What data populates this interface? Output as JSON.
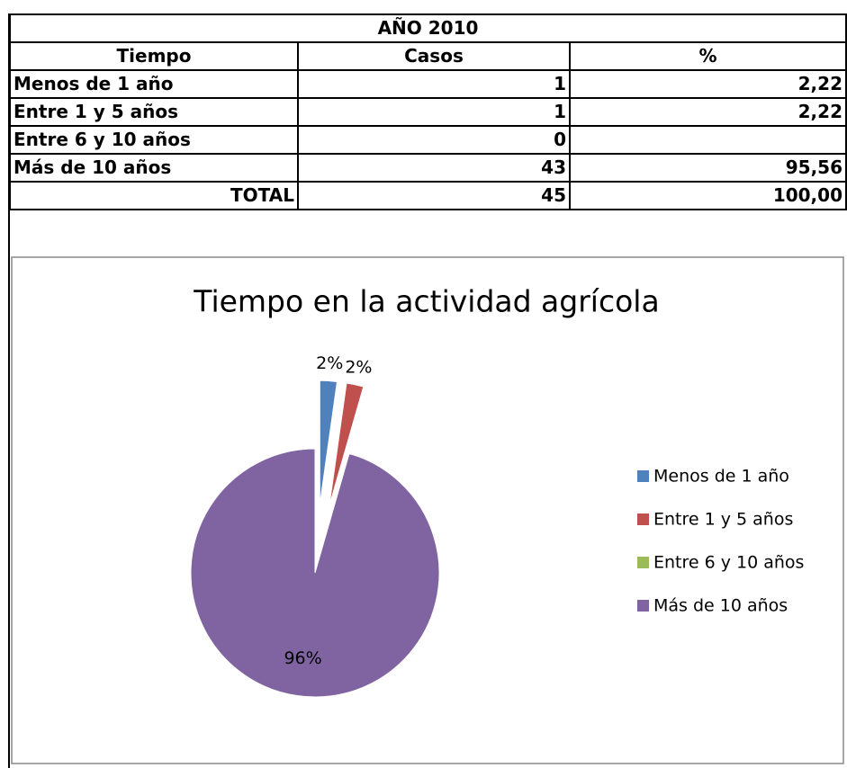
{
  "table": {
    "title": "AÑO 2010",
    "header": [
      "Tiempo",
      "Casos",
      "%"
    ],
    "rows": [
      [
        "Menos de 1 año",
        1,
        "2,22"
      ],
      [
        "Entre 1 y 5 años",
        1,
        "2,22"
      ],
      [
        "Entre 6 y 10 años",
        0,
        null
      ],
      [
        "Más de 10 años",
        43,
        "95,56"
      ]
    ],
    "total": [
      "TOTAL",
      45,
      "100,00"
    ]
  },
  "chart_data": {
    "type": "pie",
    "title": "Tiempo en la actividad agrícola",
    "categories": [
      "Menos de 1 año",
      "Entre 1 y 5 años",
      "Entre 6 y 10 años",
      "Más de 10 años"
    ],
    "values": [
      2.22,
      2.22,
      0,
      95.56
    ],
    "value_labels": [
      "2%",
      "2%",
      null,
      "96%"
    ],
    "colors": [
      "#4f81bd",
      "#c0504d",
      "#9bbb59",
      "#8064a2"
    ],
    "legend": "right"
  }
}
